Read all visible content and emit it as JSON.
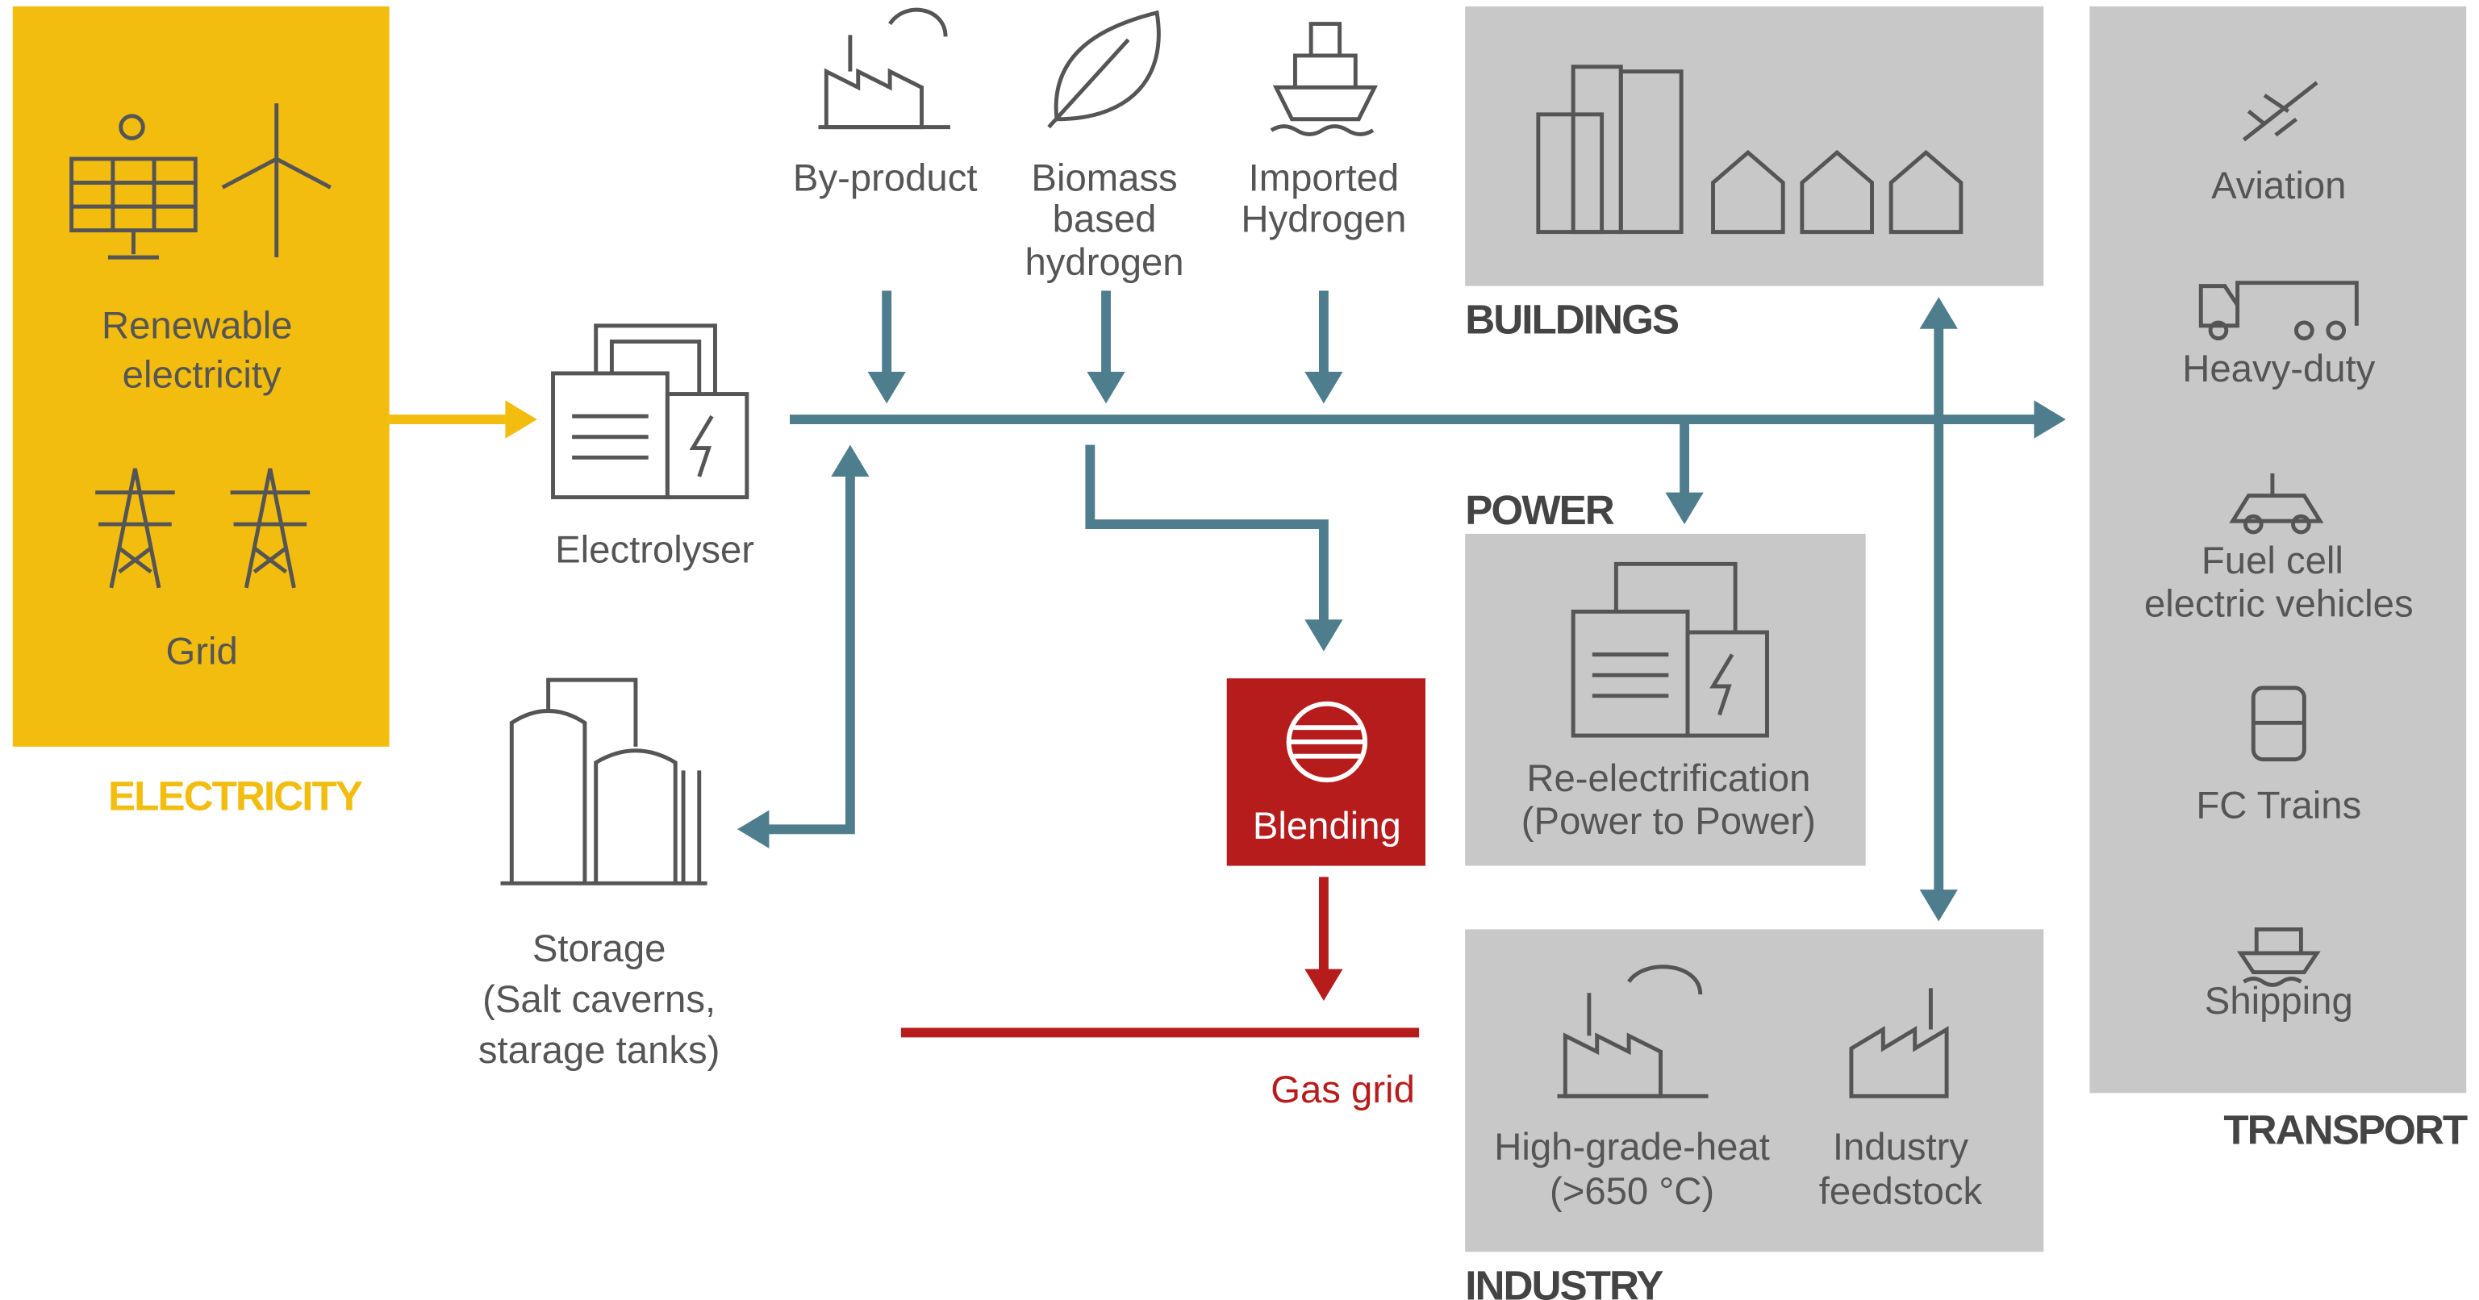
{
  "electricity": {
    "label": "ELECTRICITY",
    "renewable": [
      "Renewable",
      "electricity"
    ],
    "grid": "Grid"
  },
  "electrolyser": "Electrolyser",
  "sources": [
    [
      "By-product"
    ],
    [
      "Biomass",
      "based",
      "hydrogen"
    ],
    [
      "Imported",
      "Hydrogen"
    ]
  ],
  "storage": [
    "Storage",
    "(Salt caverns,",
    "starage tanks)"
  ],
  "blending": "Blending",
  "gas_grid": "Gas grid",
  "buildings": {
    "label": "BUILDINGS"
  },
  "power": {
    "label": "POWER",
    "item": [
      "Re-electrification",
      "(Power to Power)"
    ]
  },
  "industry": {
    "label": "INDUSTRY",
    "items": [
      [
        "High-grade-heat",
        "(>650 °C)"
      ],
      [
        "Industry",
        "feedstock"
      ]
    ]
  },
  "transport": {
    "label": "TRANSPORT",
    "items": [
      [
        "Aviation"
      ],
      [
        "Heavy-duty"
      ],
      [
        "Fuel cell",
        "electric vehicles"
      ],
      [
        "FC Trains"
      ],
      [
        "Shipping"
      ]
    ]
  }
}
